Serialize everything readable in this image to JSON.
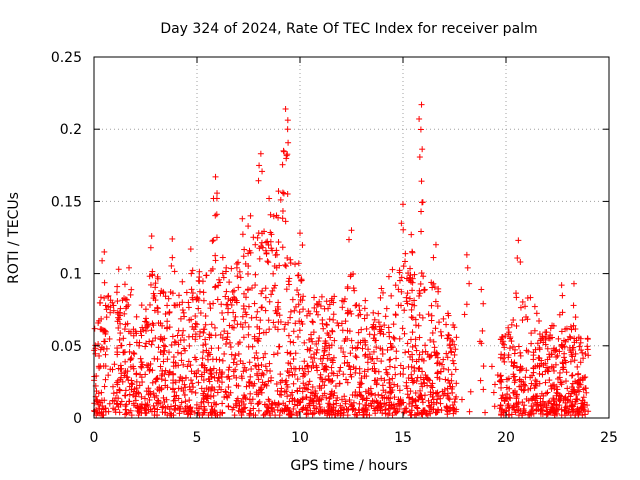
{
  "chart_data": {
    "type": "scatter",
    "title": "Day 324 of 2024, Rate Of TEC Index for receiver palm",
    "xlabel": "GPS time / hours",
    "ylabel": "ROTI / TECUs",
    "xlim": [
      0,
      25
    ],
    "ylim": [
      0,
      0.25
    ],
    "x_ticks": [
      0,
      5,
      10,
      15,
      20,
      25
    ],
    "x_tick_labels": [
      "0",
      "5",
      "10",
      "15",
      "20",
      "25"
    ],
    "y_ticks": [
      0,
      0.05,
      0.1,
      0.15,
      0.2,
      0.25
    ],
    "y_tick_labels": [
      "0",
      "0.05",
      "0.1",
      "0.15",
      "0.2",
      "0.25"
    ],
    "grid": true,
    "marker": "+",
    "series_color": "#ff0000",
    "data_gap_hours": [
      17.6,
      19.7
    ],
    "envelope": {
      "hours": [
        0,
        0.5,
        1,
        1.5,
        2,
        2.5,
        3,
        3.5,
        4,
        4.5,
        5,
        5.5,
        6,
        6.5,
        7,
        7.5,
        8,
        8.5,
        9,
        9.5,
        10,
        10.5,
        11,
        11.5,
        12,
        12.5,
        13,
        13.5,
        14,
        14.5,
        15,
        15.5,
        16,
        16.5,
        17,
        17.5,
        18,
        18.5,
        19,
        19.5,
        20,
        20.5,
        21,
        21.5,
        22,
        22.5,
        23,
        23.5,
        24
      ],
      "typical_max_roti": [
        0.06,
        0.09,
        0.08,
        0.09,
        0.07,
        0.08,
        0.1,
        0.08,
        0.1,
        0.09,
        0.1,
        0.1,
        0.12,
        0.1,
        0.11,
        0.12,
        0.13,
        0.12,
        0.16,
        0.11,
        0.1,
        0.08,
        0.08,
        0.08,
        0.09,
        0.09,
        0.08,
        0.08,
        0.09,
        0.1,
        0.11,
        0.1,
        0.1,
        0.09,
        0.08,
        0.06,
        0.06,
        0.06,
        0.04,
        0.04,
        0.06,
        0.07,
        0.09,
        0.07,
        0.06,
        0.06,
        0.06,
        0.06,
        0.05
      ]
    },
    "peaks": [
      {
        "hour": 0.5,
        "roti": 0.115
      },
      {
        "hour": 1.2,
        "roti": 0.103
      },
      {
        "hour": 1.7,
        "roti": 0.104
      },
      {
        "hour": 2.8,
        "roti": 0.126
      },
      {
        "hour": 3.8,
        "roti": 0.124
      },
      {
        "hour": 4.7,
        "roti": 0.117
      },
      {
        "hour": 5.9,
        "roti": 0.167
      },
      {
        "hour": 5.8,
        "roti": 0.152
      },
      {
        "hour": 7.2,
        "roti": 0.138
      },
      {
        "hour": 7.6,
        "roti": 0.14
      },
      {
        "hour": 8.1,
        "roti": 0.183
      },
      {
        "hour": 8.5,
        "roti": 0.152
      },
      {
        "hour": 9.3,
        "roti": 0.214
      },
      {
        "hour": 9.4,
        "roti": 0.2
      },
      {
        "hour": 9.2,
        "roti": 0.185
      },
      {
        "hour": 10.0,
        "roti": 0.128
      },
      {
        "hour": 12.5,
        "roti": 0.13
      },
      {
        "hour": 15.0,
        "roti": 0.148
      },
      {
        "hour": 15.4,
        "roti": 0.127
      },
      {
        "hour": 15.9,
        "roti": 0.217
      },
      {
        "hour": 15.9,
        "roti": 0.164
      },
      {
        "hour": 16.6,
        "roti": 0.12
      },
      {
        "hour": 18.1,
        "roti": 0.113
      },
      {
        "hour": 18.8,
        "roti": 0.089
      },
      {
        "hour": 20.6,
        "roti": 0.123
      },
      {
        "hour": 22.7,
        "roti": 0.092
      },
      {
        "hour": 23.3,
        "roti": 0.093
      }
    ]
  }
}
